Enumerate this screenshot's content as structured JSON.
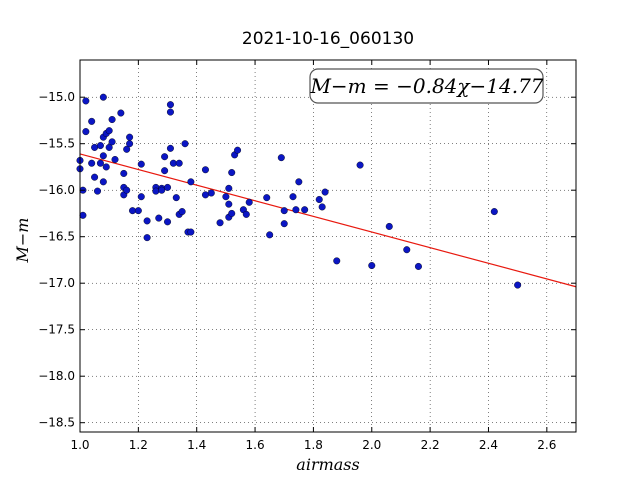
{
  "chart_data": {
    "type": "scatter",
    "title": "2021-10-16_060130",
    "xlabel": "airmass",
    "ylabel": "M−m",
    "xlim": [
      1.0,
      2.7
    ],
    "ylim": [
      -18.6,
      -14.6
    ],
    "xticks": [
      "1.0",
      "1.2",
      "1.4",
      "1.6",
      "1.8",
      "2.0",
      "2.2",
      "2.4",
      "2.6"
    ],
    "yticks": [
      "−15.0",
      "−15.5",
      "−16.0",
      "−16.5",
      "−17.0",
      "−17.5",
      "−18.0",
      "−18.5"
    ],
    "grid": true,
    "annotation": "M−m = −0.84χ−14.77",
    "fit": {
      "slope": -0.84,
      "intercept": -14.77,
      "color": "#e8190f"
    },
    "point_color": "#0b16c4",
    "points": [
      [
        1.0,
        -15.77
      ],
      [
        1.0,
        -15.68
      ],
      [
        1.01,
        -16.0
      ],
      [
        1.01,
        -16.27
      ],
      [
        1.02,
        -15.04
      ],
      [
        1.02,
        -15.37
      ],
      [
        1.04,
        -15.71
      ],
      [
        1.04,
        -15.26
      ],
      [
        1.05,
        -15.86
      ],
      [
        1.05,
        -15.54
      ],
      [
        1.06,
        -16.01
      ],
      [
        1.07,
        -15.52
      ],
      [
        1.07,
        -15.71
      ],
      [
        1.08,
        -15.0
      ],
      [
        1.08,
        -15.43
      ],
      [
        1.08,
        -15.91
      ],
      [
        1.08,
        -15.63
      ],
      [
        1.09,
        -15.39
      ],
      [
        1.09,
        -15.75
      ],
      [
        1.1,
        -15.36
      ],
      [
        1.1,
        -15.54
      ],
      [
        1.11,
        -15.48
      ],
      [
        1.11,
        -15.24
      ],
      [
        1.12,
        -15.67
      ],
      [
        1.14,
        -15.17
      ],
      [
        1.15,
        -15.97
      ],
      [
        1.15,
        -15.82
      ],
      [
        1.15,
        -16.05
      ],
      [
        1.16,
        -15.56
      ],
      [
        1.16,
        -16.0
      ],
      [
        1.17,
        -15.5
      ],
      [
        1.17,
        -15.43
      ],
      [
        1.18,
        -16.22
      ],
      [
        1.2,
        -16.22
      ],
      [
        1.21,
        -15.72
      ],
      [
        1.21,
        -16.07
      ],
      [
        1.23,
        -16.33
      ],
      [
        1.23,
        -16.51
      ],
      [
        1.26,
        -15.97
      ],
      [
        1.26,
        -16.01
      ],
      [
        1.27,
        -16.3
      ],
      [
        1.28,
        -15.98
      ],
      [
        1.28,
        -16.0
      ],
      [
        1.29,
        -15.79
      ],
      [
        1.29,
        -15.64
      ],
      [
        1.3,
        -15.97
      ],
      [
        1.3,
        -16.34
      ],
      [
        1.31,
        -15.55
      ],
      [
        1.31,
        -15.08
      ],
      [
        1.31,
        -15.16
      ],
      [
        1.32,
        -15.71
      ],
      [
        1.33,
        -16.08
      ],
      [
        1.34,
        -15.71
      ],
      [
        1.34,
        -16.26
      ],
      [
        1.35,
        -16.23
      ],
      [
        1.36,
        -15.5
      ],
      [
        1.37,
        -16.45
      ],
      [
        1.38,
        -16.45
      ],
      [
        1.38,
        -15.91
      ],
      [
        1.43,
        -15.78
      ],
      [
        1.43,
        -16.05
      ],
      [
        1.45,
        -16.03
      ],
      [
        1.48,
        -16.35
      ],
      [
        1.5,
        -16.07
      ],
      [
        1.51,
        -16.15
      ],
      [
        1.51,
        -15.98
      ],
      [
        1.51,
        -16.29
      ],
      [
        1.52,
        -15.81
      ],
      [
        1.52,
        -16.25
      ],
      [
        1.53,
        -15.62
      ],
      [
        1.54,
        -15.57
      ],
      [
        1.56,
        -16.21
      ],
      [
        1.57,
        -16.26
      ],
      [
        1.58,
        -16.13
      ],
      [
        1.64,
        -16.08
      ],
      [
        1.65,
        -16.48
      ],
      [
        1.69,
        -15.65
      ],
      [
        1.7,
        -16.36
      ],
      [
        1.7,
        -16.22
      ],
      [
        1.73,
        -16.07
      ],
      [
        1.74,
        -16.21
      ],
      [
        1.75,
        -15.91
      ],
      [
        1.77,
        -16.21
      ],
      [
        1.82,
        -16.1
      ],
      [
        1.83,
        -16.18
      ],
      [
        1.84,
        -16.02
      ],
      [
        1.88,
        -16.76
      ],
      [
        1.96,
        -15.73
      ],
      [
        2.0,
        -16.81
      ],
      [
        2.06,
        -16.39
      ],
      [
        2.12,
        -16.64
      ],
      [
        2.16,
        -16.82
      ],
      [
        2.42,
        -16.23
      ],
      [
        2.5,
        -17.02
      ]
    ]
  }
}
